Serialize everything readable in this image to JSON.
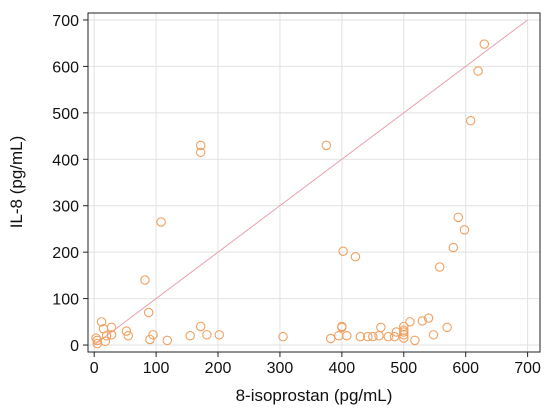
{
  "chart_data": {
    "type": "scatter",
    "xlabel": "8-isoprostan (pg/mL)",
    "ylabel": "IL-8 (pg/mL)",
    "xlim": [
      -10,
      720
    ],
    "ylim": [
      -15,
      715
    ],
    "x_ticks": [
      0,
      100,
      200,
      300,
      400,
      500,
      600,
      700
    ],
    "y_ticks": [
      0,
      100,
      200,
      300,
      400,
      500,
      600,
      700
    ],
    "grid": true,
    "reference_line": {
      "from": [
        0,
        0
      ],
      "to": [
        700,
        700
      ],
      "color": "#e8a0b0"
    },
    "marker_color": "#f0a060",
    "series": [
      {
        "points": [
          [
            3,
            15
          ],
          [
            5,
            10
          ],
          [
            5,
            3
          ],
          [
            12,
            50
          ],
          [
            15,
            35
          ],
          [
            18,
            8
          ],
          [
            20,
            20
          ],
          [
            28,
            38
          ],
          [
            28,
            22
          ],
          [
            52,
            30
          ],
          [
            55,
            20
          ],
          [
            82,
            140
          ],
          [
            88,
            70
          ],
          [
            90,
            12
          ],
          [
            95,
            22
          ],
          [
            108,
            265
          ],
          [
            118,
            10
          ],
          [
            155,
            20
          ],
          [
            172,
            430
          ],
          [
            172,
            415
          ],
          [
            172,
            40
          ],
          [
            182,
            22
          ],
          [
            202,
            22
          ],
          [
            305,
            18
          ],
          [
            375,
            430
          ],
          [
            382,
            14
          ],
          [
            395,
            20
          ],
          [
            400,
            40
          ],
          [
            400,
            38
          ],
          [
            402,
            202
          ],
          [
            408,
            20
          ],
          [
            422,
            190
          ],
          [
            430,
            18
          ],
          [
            442,
            18
          ],
          [
            450,
            18
          ],
          [
            460,
            20
          ],
          [
            463,
            38
          ],
          [
            475,
            18
          ],
          [
            485,
            18
          ],
          [
            488,
            28
          ],
          [
            500,
            40
          ],
          [
            500,
            32
          ],
          [
            500,
            28
          ],
          [
            500,
            22
          ],
          [
            500,
            15
          ],
          [
            510,
            50
          ],
          [
            518,
            10
          ],
          [
            530,
            52
          ],
          [
            540,
            58
          ],
          [
            548,
            22
          ],
          [
            558,
            168
          ],
          [
            570,
            38
          ],
          [
            580,
            210
          ],
          [
            588,
            275
          ],
          [
            598,
            248
          ],
          [
            608,
            483
          ],
          [
            620,
            590
          ],
          [
            630,
            648
          ]
        ]
      }
    ]
  }
}
